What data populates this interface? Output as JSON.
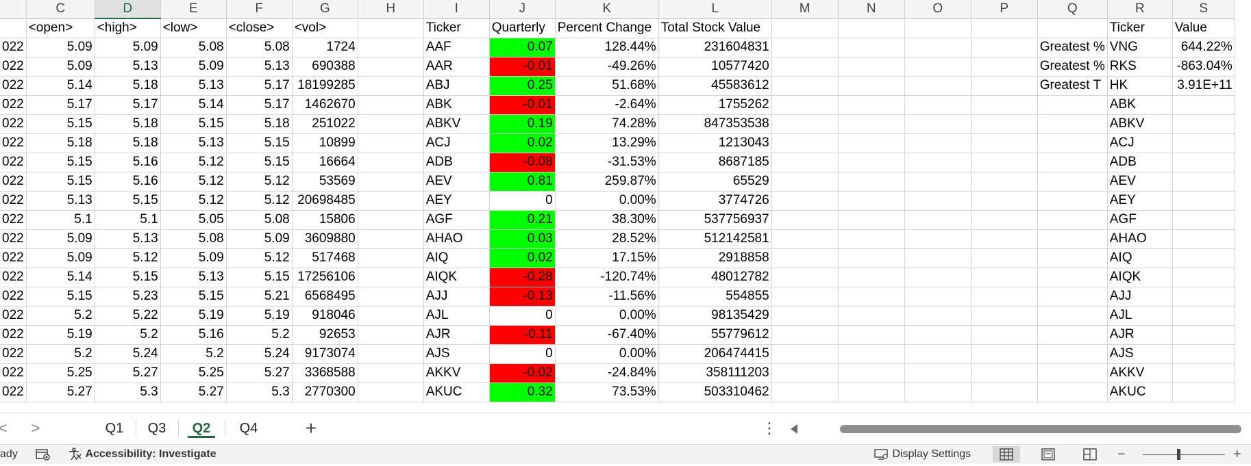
{
  "columns": [
    "",
    "C",
    "D",
    "E",
    "F",
    "G",
    "H",
    "I",
    "J",
    "K",
    "L",
    "M",
    "N",
    "O",
    "P",
    "Q",
    "R",
    "S"
  ],
  "selected_column": "D",
  "data_headers": {
    "open": "<open>",
    "high": "<high>",
    "low": "<low>",
    "close": "<close>",
    "vol": "<vol>",
    "ticker": "Ticker",
    "quarterly": "Quarterly",
    "percent_change": "Percent Change",
    "total_stock_value": "Total Stock Value",
    "summary_ticker": "Ticker",
    "summary_value": "Value"
  },
  "rows": [
    {
      "date": "022",
      "open": "5.09",
      "high": "5.09",
      "low": "5.08",
      "close": "5.08",
      "vol": "1724",
      "ticker": "AAF",
      "quarterly": "0.07",
      "qsign": "pos",
      "pct": "128.44%",
      "total": "231604831",
      "q_label": "Greatest %",
      "r_ticker": "VNG",
      "s_value": "644.22%"
    },
    {
      "date": "022",
      "open": "5.09",
      "high": "5.13",
      "low": "5.09",
      "close": "5.13",
      "vol": "690388",
      "ticker": "AAR",
      "quarterly": "-0.01",
      "qsign": "neg",
      "pct": "-49.26%",
      "total": "10577420",
      "q_label": "Greatest %",
      "r_ticker": "RKS",
      "s_value": "-863.04%"
    },
    {
      "date": "022",
      "open": "5.14",
      "high": "5.18",
      "low": "5.13",
      "close": "5.17",
      "vol": "18199285",
      "ticker": "ABJ",
      "quarterly": "0.25",
      "qsign": "pos",
      "pct": "51.68%",
      "total": "45583612",
      "q_label": "Greatest T",
      "r_ticker": "HK",
      "s_value": "3.91E+11"
    },
    {
      "date": "022",
      "open": "5.17",
      "high": "5.17",
      "low": "5.14",
      "close": "5.17",
      "vol": "1462670",
      "ticker": "ABK",
      "quarterly": "-0.01",
      "qsign": "neg",
      "pct": "-2.64%",
      "total": "1755262",
      "q_label": "",
      "r_ticker": "ABK",
      "s_value": ""
    },
    {
      "date": "022",
      "open": "5.15",
      "high": "5.18",
      "low": "5.15",
      "close": "5.18",
      "vol": "251022",
      "ticker": "ABKV",
      "quarterly": "0.19",
      "qsign": "pos",
      "pct": "74.28%",
      "total": "847353538",
      "q_label": "",
      "r_ticker": "ABKV",
      "s_value": ""
    },
    {
      "date": "022",
      "open": "5.18",
      "high": "5.18",
      "low": "5.13",
      "close": "5.15",
      "vol": "10899",
      "ticker": "ACJ",
      "quarterly": "0.02",
      "qsign": "pos",
      "pct": "13.29%",
      "total": "1213043",
      "q_label": "",
      "r_ticker": "ACJ",
      "s_value": ""
    },
    {
      "date": "022",
      "open": "5.15",
      "high": "5.16",
      "low": "5.12",
      "close": "5.15",
      "vol": "16664",
      "ticker": "ADB",
      "quarterly": "-0.08",
      "qsign": "neg",
      "pct": "-31.53%",
      "total": "8687185",
      "q_label": "",
      "r_ticker": "ADB",
      "s_value": ""
    },
    {
      "date": "022",
      "open": "5.15",
      "high": "5.16",
      "low": "5.12",
      "close": "5.12",
      "vol": "53569",
      "ticker": "AEV",
      "quarterly": "0.81",
      "qsign": "pos",
      "pct": "259.87%",
      "total": "65529",
      "q_label": "",
      "r_ticker": "AEV",
      "s_value": ""
    },
    {
      "date": "022",
      "open": "5.13",
      "high": "5.15",
      "low": "5.12",
      "close": "5.12",
      "vol": "20698485",
      "ticker": "AEY",
      "quarterly": "0",
      "qsign": "zero",
      "pct": "0.00%",
      "total": "3774726",
      "q_label": "",
      "r_ticker": "AEY",
      "s_value": ""
    },
    {
      "date": "022",
      "open": "5.1",
      "high": "5.1",
      "low": "5.05",
      "close": "5.08",
      "vol": "15806",
      "ticker": "AGF",
      "quarterly": "0.21",
      "qsign": "pos",
      "pct": "38.30%",
      "total": "537756937",
      "q_label": "",
      "r_ticker": "AGF",
      "s_value": ""
    },
    {
      "date": "022",
      "open": "5.09",
      "high": "5.13",
      "low": "5.08",
      "close": "5.09",
      "vol": "3609880",
      "ticker": "AHAO",
      "quarterly": "0.03",
      "qsign": "pos",
      "pct": "28.52%",
      "total": "512142581",
      "q_label": "",
      "r_ticker": "AHAO",
      "s_value": ""
    },
    {
      "date": "022",
      "open": "5.09",
      "high": "5.12",
      "low": "5.09",
      "close": "5.12",
      "vol": "517468",
      "ticker": "AIQ",
      "quarterly": "0.02",
      "qsign": "pos",
      "pct": "17.15%",
      "total": "2918858",
      "q_label": "",
      "r_ticker": "AIQ",
      "s_value": ""
    },
    {
      "date": "022",
      "open": "5.14",
      "high": "5.15",
      "low": "5.13",
      "close": "5.15",
      "vol": "17256106",
      "ticker": "AIQK",
      "quarterly": "-0.28",
      "qsign": "neg",
      "pct": "-120.74%",
      "total": "48012782",
      "q_label": "",
      "r_ticker": "AIQK",
      "s_value": ""
    },
    {
      "date": "022",
      "open": "5.15",
      "high": "5.23",
      "low": "5.15",
      "close": "5.21",
      "vol": "6568495",
      "ticker": "AJJ",
      "quarterly": "-0.13",
      "qsign": "neg",
      "pct": "-11.56%",
      "total": "554855",
      "q_label": "",
      "r_ticker": "AJJ",
      "s_value": ""
    },
    {
      "date": "022",
      "open": "5.2",
      "high": "5.22",
      "low": "5.19",
      "close": "5.19",
      "vol": "918046",
      "ticker": "AJL",
      "quarterly": "0",
      "qsign": "zero",
      "pct": "0.00%",
      "total": "98135429",
      "q_label": "",
      "r_ticker": "AJL",
      "s_value": ""
    },
    {
      "date": "022",
      "open": "5.19",
      "high": "5.2",
      "low": "5.16",
      "close": "5.2",
      "vol": "92653",
      "ticker": "AJR",
      "quarterly": "-0.11",
      "qsign": "neg",
      "pct": "-67.40%",
      "total": "55779612",
      "q_label": "",
      "r_ticker": "AJR",
      "s_value": ""
    },
    {
      "date": "022",
      "open": "5.2",
      "high": "5.24",
      "low": "5.2",
      "close": "5.24",
      "vol": "9173074",
      "ticker": "AJS",
      "quarterly": "0",
      "qsign": "zero",
      "pct": "0.00%",
      "total": "206474415",
      "q_label": "",
      "r_ticker": "AJS",
      "s_value": ""
    },
    {
      "date": "022",
      "open": "5.25",
      "high": "5.27",
      "low": "5.25",
      "close": "5.27",
      "vol": "3368588",
      "ticker": "AKKV",
      "quarterly": "-0.02",
      "qsign": "neg",
      "pct": "-24.84%",
      "total": "358111203",
      "q_label": "",
      "r_ticker": "AKKV",
      "s_value": ""
    },
    {
      "date": "022",
      "open": "5.27",
      "high": "5.3",
      "low": "5.27",
      "close": "5.3",
      "vol": "2770300",
      "ticker": "AKUC",
      "quarterly": "0.32",
      "qsign": "pos",
      "pct": "73.53%",
      "total": "503310462",
      "q_label": "",
      "r_ticker": "AKUC",
      "s_value": ""
    }
  ],
  "tabs": [
    {
      "label": "Q1",
      "active": false
    },
    {
      "label": "Q3",
      "active": false
    },
    {
      "label": "Q2",
      "active": true
    },
    {
      "label": "Q4",
      "active": false
    }
  ],
  "tab_nav": {
    "prev": "<",
    "next": ">",
    "add": "+",
    "more": "⋮"
  },
  "status": {
    "mode": "ady",
    "accessibility": "Accessibility: Investigate",
    "display_settings": "Display Settings",
    "zoom_minus": "−",
    "zoom_plus": "+"
  },
  "colors": {
    "positive": "#00ff00",
    "negative": "#ff0000",
    "accent": "#1d6b3c"
  }
}
